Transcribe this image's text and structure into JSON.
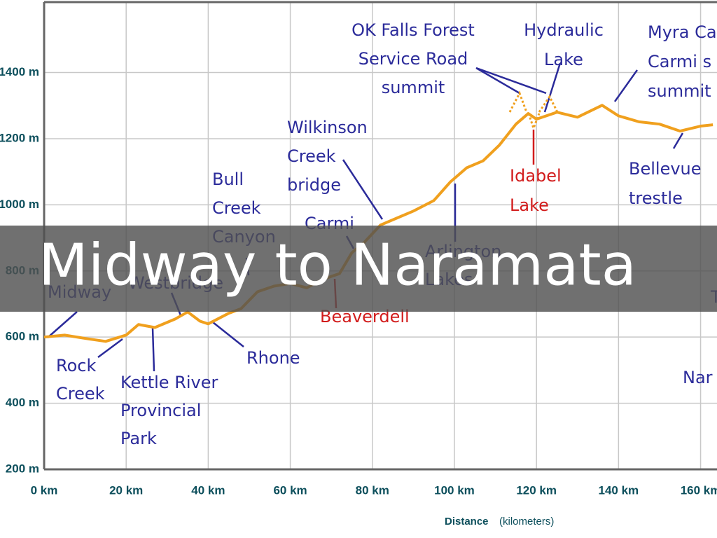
{
  "chart_data": {
    "type": "line",
    "title": "Midway to Naramata",
    "x_label": "Distance",
    "x_label_unit": "(kilometers)",
    "x": [
      0,
      5,
      10,
      15,
      20,
      23,
      27,
      32,
      35,
      38,
      40,
      45,
      48,
      52,
      56,
      60,
      64,
      68,
      72,
      75,
      78,
      82,
      86,
      90,
      95,
      99,
      103,
      107,
      111,
      115,
      118,
      120,
      125,
      130,
      136,
      140,
      145,
      150,
      155,
      160,
      163
    ],
    "series": [
      {
        "color": "#f0a01e",
        "values": [
          600,
          606,
          596,
          587,
          606,
          638,
          629,
          655,
          676,
          648,
          640,
          672,
          686,
          737,
          754,
          762,
          749,
          775,
          792,
          855,
          886,
          939,
          960,
          981,
          1013,
          1069,
          1112,
          1133,
          1181,
          1244,
          1276,
          1259,
          1280,
          1265,
          1301,
          1269,
          1251,
          1244,
          1223,
          1238,
          1242
        ]
      }
    ],
    "xlim": [
      0,
      164
    ],
    "ylim": [
      200,
      1613
    ],
    "xticks": [
      {
        "value": 0,
        "label": "0 km"
      },
      {
        "value": 20,
        "label": "20 km"
      },
      {
        "value": 40,
        "label": "40 km"
      },
      {
        "value": 60,
        "label": "60 km"
      },
      {
        "value": 80,
        "label": "80 km"
      },
      {
        "value": 100,
        "label": "100 km"
      },
      {
        "value": 120,
        "label": "120 km"
      },
      {
        "value": 140,
        "label": "140 km"
      },
      {
        "value": 160,
        "label": "160 km"
      }
    ],
    "yticks": [
      {
        "value": 200,
        "label": "200 m"
      },
      {
        "value": 400,
        "label": "400 m"
      },
      {
        "value": 600,
        "label": "600 m"
      },
      {
        "value": 800,
        "label": "800 m"
      },
      {
        "value": 1000,
        "label": "1000 m"
      },
      {
        "value": 1200,
        "label": "1200 m"
      },
      {
        "value": 1400,
        "label": "1400 m"
      }
    ],
    "grid": true,
    "annotations": [
      {
        "lines": [
          "OK Falls Forest",
          "Service Road",
          "summit"
        ],
        "color": "#2b2b9a"
      },
      {
        "lines": [
          "Hydraulic",
          "Lake"
        ],
        "color": "#2b2b9a"
      },
      {
        "lines": [
          "Myra Ca",
          "Carmi s",
          "summit"
        ],
        "color": "#2b2b9a"
      },
      {
        "lines": [
          "Wilkinson",
          "Creek",
          "bridge"
        ],
        "color": "#2b2b9a"
      },
      {
        "lines": [
          "Bull",
          "Creek",
          "Canyon"
        ],
        "color": "#2b2b9a"
      },
      {
        "lines": [
          "Carmi"
        ],
        "color": "#2b2b9a"
      },
      {
        "lines": [
          "Idabel",
          "Lake"
        ],
        "color": "#d21c1c"
      },
      {
        "lines": [
          "Bellevue",
          "trestle"
        ],
        "color": "#2b2b9a"
      },
      {
        "lines": [
          "Arlington",
          "Lakes"
        ],
        "color": "#2b2b9a"
      },
      {
        "lines": [
          "Midway"
        ],
        "color": "#2b2b9a"
      },
      {
        "lines": [
          "Westbridge"
        ],
        "color": "#2b2b9a"
      },
      {
        "lines": [
          "Beaverdell"
        ],
        "color": "#d21c1c"
      },
      {
        "lines": [
          "Rhone"
        ],
        "color": "#2b2b9a"
      },
      {
        "lines": [
          "Rock",
          "Creek"
        ],
        "color": "#2b2b9a"
      },
      {
        "lines": [
          "Kettle River",
          "Provincial",
          "Park"
        ],
        "color": "#2b2b9a"
      },
      {
        "lines": [
          "Nar"
        ],
        "color": "#2b2b9a"
      },
      {
        "lines": [
          "T"
        ],
        "color": "#2b2b9a"
      }
    ]
  }
}
